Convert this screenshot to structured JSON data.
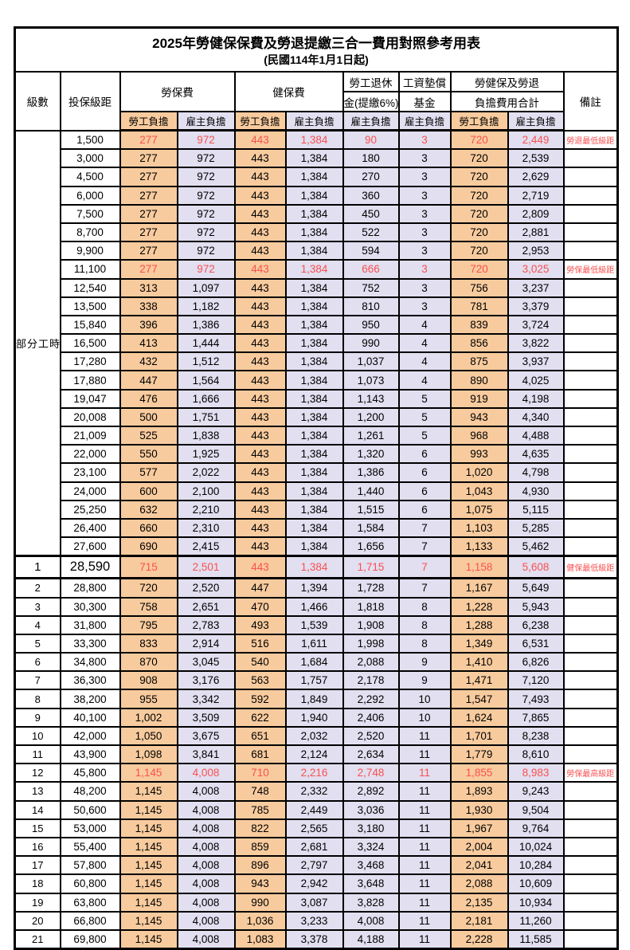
{
  "title": {
    "line1": "2025年勞健保保費及勞退提繳三合一費用對照參考用表",
    "line2": "(民國114年1月1日起)"
  },
  "header": {
    "level": "級數",
    "bracket": "投保級距",
    "labor_ins": "勞保費",
    "health_ins": "健保費",
    "pension_line1": "勞工退休",
    "pension_line2": "金(提繳6%)",
    "wage_fund_line1": "工資墊償",
    "wage_fund_line2": "基金",
    "total_line1": "勞健保及勞退",
    "total_line2": "負擔費用合計",
    "note": "備註",
    "employee": "勞工負擔",
    "employer": "雇主負擔"
  },
  "part_time_label": "部分工時",
  "colors": {
    "employee_bg": "#F8CB9E",
    "employer_bg": "#E1DFF0",
    "highlight_text": "#FA5050"
  },
  "rows": [
    {
      "level": null,
      "bracket": "1,500",
      "values": [
        "277",
        "972",
        "443",
        "1,384",
        "90",
        "3",
        "720",
        "2,449"
      ],
      "note": "勞退最低級距",
      "red": true,
      "special": false
    },
    {
      "level": null,
      "bracket": "3,000",
      "values": [
        "277",
        "972",
        "443",
        "1,384",
        "180",
        "3",
        "720",
        "2,539"
      ],
      "note": "",
      "red": false,
      "special": false
    },
    {
      "level": null,
      "bracket": "4,500",
      "values": [
        "277",
        "972",
        "443",
        "1,384",
        "270",
        "3",
        "720",
        "2,629"
      ],
      "note": "",
      "red": false,
      "special": false
    },
    {
      "level": null,
      "bracket": "6,000",
      "values": [
        "277",
        "972",
        "443",
        "1,384",
        "360",
        "3",
        "720",
        "2,719"
      ],
      "note": "",
      "red": false,
      "special": false
    },
    {
      "level": null,
      "bracket": "7,500",
      "values": [
        "277",
        "972",
        "443",
        "1,384",
        "450",
        "3",
        "720",
        "2,809"
      ],
      "note": "",
      "red": false,
      "special": false
    },
    {
      "level": null,
      "bracket": "8,700",
      "values": [
        "277",
        "972",
        "443",
        "1,384",
        "522",
        "3",
        "720",
        "2,881"
      ],
      "note": "",
      "red": false,
      "special": false
    },
    {
      "level": null,
      "bracket": "9,900",
      "values": [
        "277",
        "972",
        "443",
        "1,384",
        "594",
        "3",
        "720",
        "2,953"
      ],
      "note": "",
      "red": false,
      "special": false
    },
    {
      "level": null,
      "bracket": "11,100",
      "values": [
        "277",
        "972",
        "443",
        "1,384",
        "666",
        "3",
        "720",
        "3,025"
      ],
      "note": "勞保最低級距",
      "red": true,
      "special": false
    },
    {
      "level": null,
      "bracket": "12,540",
      "values": [
        "313",
        "1,097",
        "443",
        "1,384",
        "752",
        "3",
        "756",
        "3,237"
      ],
      "note": "",
      "red": false,
      "special": false
    },
    {
      "level": null,
      "bracket": "13,500",
      "values": [
        "338",
        "1,182",
        "443",
        "1,384",
        "810",
        "3",
        "781",
        "3,379"
      ],
      "note": "",
      "red": false,
      "special": false
    },
    {
      "level": null,
      "bracket": "15,840",
      "values": [
        "396",
        "1,386",
        "443",
        "1,384",
        "950",
        "4",
        "839",
        "3,724"
      ],
      "note": "",
      "red": false,
      "special": false
    },
    {
      "level": null,
      "bracket": "16,500",
      "values": [
        "413",
        "1,444",
        "443",
        "1,384",
        "990",
        "4",
        "856",
        "3,822"
      ],
      "note": "",
      "red": false,
      "special": false
    },
    {
      "level": null,
      "bracket": "17,280",
      "values": [
        "432",
        "1,512",
        "443",
        "1,384",
        "1,037",
        "4",
        "875",
        "3,937"
      ],
      "note": "",
      "red": false,
      "special": false
    },
    {
      "level": null,
      "bracket": "17,880",
      "values": [
        "447",
        "1,564",
        "443",
        "1,384",
        "1,073",
        "4",
        "890",
        "4,025"
      ],
      "note": "",
      "red": false,
      "special": false
    },
    {
      "level": null,
      "bracket": "19,047",
      "values": [
        "476",
        "1,666",
        "443",
        "1,384",
        "1,143",
        "5",
        "919",
        "4,198"
      ],
      "note": "",
      "red": false,
      "special": false
    },
    {
      "level": null,
      "bracket": "20,008",
      "values": [
        "500",
        "1,751",
        "443",
        "1,384",
        "1,200",
        "5",
        "943",
        "4,340"
      ],
      "note": "",
      "red": false,
      "special": false
    },
    {
      "level": null,
      "bracket": "21,009",
      "values": [
        "525",
        "1,838",
        "443",
        "1,384",
        "1,261",
        "5",
        "968",
        "4,488"
      ],
      "note": "",
      "red": false,
      "special": false
    },
    {
      "level": null,
      "bracket": "22,000",
      "values": [
        "550",
        "1,925",
        "443",
        "1,384",
        "1,320",
        "6",
        "993",
        "4,635"
      ],
      "note": "",
      "red": false,
      "special": false
    },
    {
      "level": null,
      "bracket": "23,100",
      "values": [
        "577",
        "2,022",
        "443",
        "1,384",
        "1,386",
        "6",
        "1,020",
        "4,798"
      ],
      "note": "",
      "red": false,
      "special": false
    },
    {
      "level": null,
      "bracket": "24,000",
      "values": [
        "600",
        "2,100",
        "443",
        "1,384",
        "1,440",
        "6",
        "1,043",
        "4,930"
      ],
      "note": "",
      "red": false,
      "special": false
    },
    {
      "level": null,
      "bracket": "25,250",
      "values": [
        "632",
        "2,210",
        "443",
        "1,384",
        "1,515",
        "6",
        "1,075",
        "5,115"
      ],
      "note": "",
      "red": false,
      "special": false
    },
    {
      "level": null,
      "bracket": "26,400",
      "values": [
        "660",
        "2,310",
        "443",
        "1,384",
        "1,584",
        "7",
        "1,103",
        "5,285"
      ],
      "note": "",
      "red": false,
      "special": false
    },
    {
      "level": null,
      "bracket": "27,600",
      "values": [
        "690",
        "2,415",
        "443",
        "1,384",
        "1,656",
        "7",
        "1,133",
        "5,462"
      ],
      "note": "",
      "red": false,
      "special": false
    },
    {
      "level": "1",
      "bracket": "28,590",
      "values": [
        "715",
        "2,501",
        "443",
        "1,384",
        "1,715",
        "7",
        "1,158",
        "5,608"
      ],
      "note": "健保最低級距",
      "red": true,
      "special": true
    },
    {
      "level": "2",
      "bracket": "28,800",
      "values": [
        "720",
        "2,520",
        "447",
        "1,394",
        "1,728",
        "7",
        "1,167",
        "5,649"
      ],
      "note": "",
      "red": false,
      "special": false
    },
    {
      "level": "3",
      "bracket": "30,300",
      "values": [
        "758",
        "2,651",
        "470",
        "1,466",
        "1,818",
        "8",
        "1,228",
        "5,943"
      ],
      "note": "",
      "red": false,
      "special": false
    },
    {
      "level": "4",
      "bracket": "31,800",
      "values": [
        "795",
        "2,783",
        "493",
        "1,539",
        "1,908",
        "8",
        "1,288",
        "6,238"
      ],
      "note": "",
      "red": false,
      "special": false
    },
    {
      "level": "5",
      "bracket": "33,300",
      "values": [
        "833",
        "2,914",
        "516",
        "1,611",
        "1,998",
        "8",
        "1,349",
        "6,531"
      ],
      "note": "",
      "red": false,
      "special": false
    },
    {
      "level": "6",
      "bracket": "34,800",
      "values": [
        "870",
        "3,045",
        "540",
        "1,684",
        "2,088",
        "9",
        "1,410",
        "6,826"
      ],
      "note": "",
      "red": false,
      "special": false
    },
    {
      "level": "7",
      "bracket": "36,300",
      "values": [
        "908",
        "3,176",
        "563",
        "1,757",
        "2,178",
        "9",
        "1,471",
        "7,120"
      ],
      "note": "",
      "red": false,
      "special": false
    },
    {
      "level": "8",
      "bracket": "38,200",
      "values": [
        "955",
        "3,342",
        "592",
        "1,849",
        "2,292",
        "10",
        "1,547",
        "7,493"
      ],
      "note": "",
      "red": false,
      "special": false
    },
    {
      "level": "9",
      "bracket": "40,100",
      "values": [
        "1,002",
        "3,509",
        "622",
        "1,940",
        "2,406",
        "10",
        "1,624",
        "7,865"
      ],
      "note": "",
      "red": false,
      "special": false
    },
    {
      "level": "10",
      "bracket": "42,000",
      "values": [
        "1,050",
        "3,675",
        "651",
        "2,032",
        "2,520",
        "11",
        "1,701",
        "8,238"
      ],
      "note": "",
      "red": false,
      "special": false
    },
    {
      "level": "11",
      "bracket": "43,900",
      "values": [
        "1,098",
        "3,841",
        "681",
        "2,124",
        "2,634",
        "11",
        "1,779",
        "8,610"
      ],
      "note": "",
      "red": false,
      "special": false
    },
    {
      "level": "12",
      "bracket": "45,800",
      "values": [
        "1,145",
        "4,008",
        "710",
        "2,216",
        "2,748",
        "11",
        "1,855",
        "8,983"
      ],
      "note": "勞保最高級距",
      "red": true,
      "special": false
    },
    {
      "level": "13",
      "bracket": "48,200",
      "values": [
        "1,145",
        "4,008",
        "748",
        "2,332",
        "2,892",
        "11",
        "1,893",
        "9,243"
      ],
      "note": "",
      "red": false,
      "special": false
    },
    {
      "level": "14",
      "bracket": "50,600",
      "values": [
        "1,145",
        "4,008",
        "785",
        "2,449",
        "3,036",
        "11",
        "1,930",
        "9,504"
      ],
      "note": "",
      "red": false,
      "special": false
    },
    {
      "level": "15",
      "bracket": "53,000",
      "values": [
        "1,145",
        "4,008",
        "822",
        "2,565",
        "3,180",
        "11",
        "1,967",
        "9,764"
      ],
      "note": "",
      "red": false,
      "special": false
    },
    {
      "level": "16",
      "bracket": "55,400",
      "values": [
        "1,145",
        "4,008",
        "859",
        "2,681",
        "3,324",
        "11",
        "2,004",
        "10,024"
      ],
      "note": "",
      "red": false,
      "special": false
    },
    {
      "level": "17",
      "bracket": "57,800",
      "values": [
        "1,145",
        "4,008",
        "896",
        "2,797",
        "3,468",
        "11",
        "2,041",
        "10,284"
      ],
      "note": "",
      "red": false,
      "special": false
    },
    {
      "level": "18",
      "bracket": "60,800",
      "values": [
        "1,145",
        "4,008",
        "943",
        "2,942",
        "3,648",
        "11",
        "2,088",
        "10,609"
      ],
      "note": "",
      "red": false,
      "special": false
    },
    {
      "level": "19",
      "bracket": "63,800",
      "values": [
        "1,145",
        "4,008",
        "990",
        "3,087",
        "3,828",
        "11",
        "2,135",
        "10,934"
      ],
      "note": "",
      "red": false,
      "special": false
    },
    {
      "level": "20",
      "bracket": "66,800",
      "values": [
        "1,145",
        "4,008",
        "1,036",
        "3,233",
        "4,008",
        "11",
        "2,181",
        "11,260"
      ],
      "note": "",
      "red": false,
      "special": false
    },
    {
      "level": "21",
      "bracket": "69,800",
      "values": [
        "1,145",
        "4,008",
        "1,083",
        "3,378",
        "4,188",
        "11",
        "2,228",
        "11,585"
      ],
      "note": "",
      "red": false,
      "special": false
    }
  ]
}
